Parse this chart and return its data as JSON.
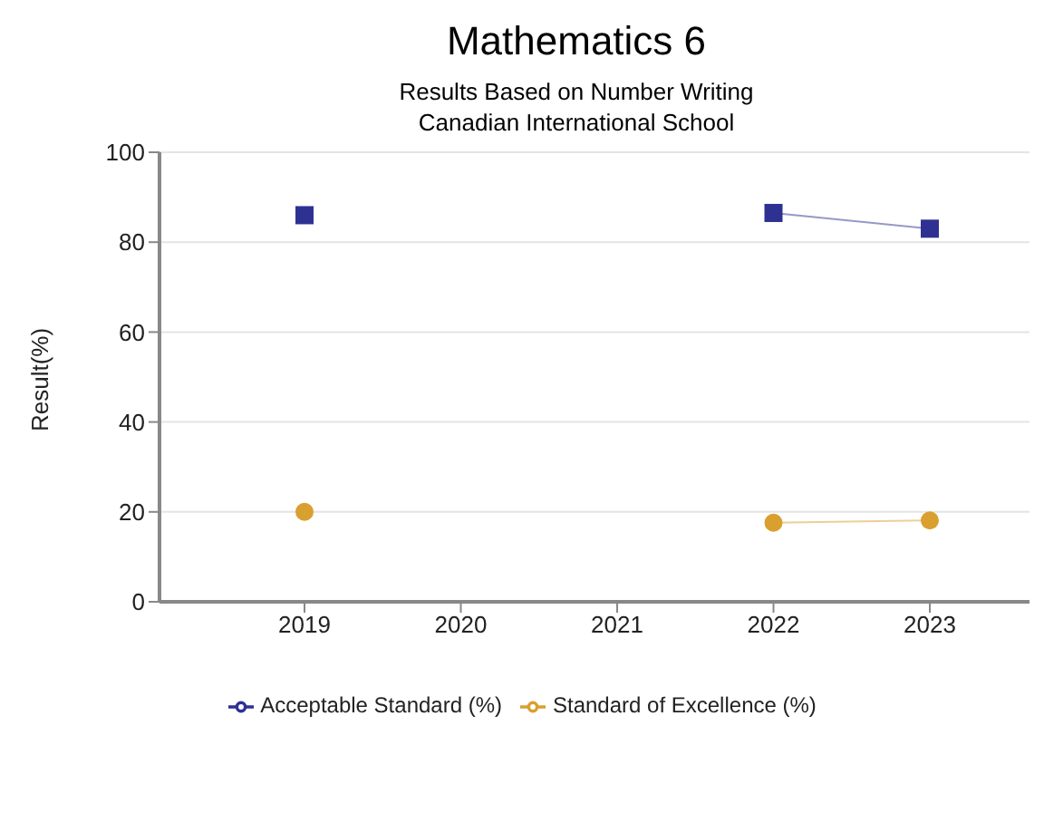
{
  "chart_data": {
    "type": "line",
    "title": "Mathematics 6",
    "subtitle": "Results Based on Number Writing\nCanadian International School",
    "ylabel": "Result(%)",
    "categories": [
      "2019",
      "2020",
      "2021",
      "2022",
      "2023"
    ],
    "series": [
      {
        "name": "Acceptable Standard (%)",
        "color": "#2e3192",
        "marker": "square",
        "values": [
          86,
          null,
          null,
          86.5,
          83
        ]
      },
      {
        "name": "Standard of Excellence (%)",
        "color": "#d9a030",
        "marker": "circle",
        "values": [
          20,
          null,
          null,
          17.6,
          18.1
        ]
      }
    ],
    "ylim": [
      0,
      100
    ],
    "yticks": [
      0,
      20,
      40,
      60,
      80,
      100
    ],
    "grid": "y",
    "legend": "bottom"
  }
}
